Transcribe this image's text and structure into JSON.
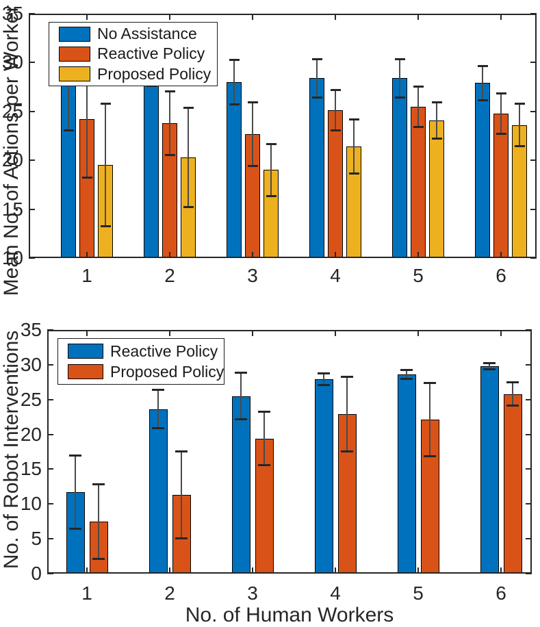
{
  "figure": {
    "background": "#ffffff",
    "axis_color": "#262626",
    "text_color": "#262626",
    "bar_edge_color": "#000000",
    "error_bar_color": "#4a4a4a"
  },
  "chart_data": [
    {
      "type": "bar",
      "title": "",
      "ylabel": "Mean No. of Actions per Worker",
      "xlabel": "",
      "categories": [
        "1",
        "2",
        "3",
        "4",
        "5",
        "6"
      ],
      "ylim": [
        10,
        35
      ],
      "yticks": [
        10,
        15,
        20,
        25,
        30,
        35
      ],
      "grid": false,
      "legend_position": "top-left",
      "series": [
        {
          "name": "No Assistance",
          "color": "#0072BD",
          "values": [
            28.0,
            29.4,
            28.0,
            28.4,
            28.4,
            27.9
          ],
          "errors": [
            5.0,
            1.8,
            2.3,
            2.0,
            2.0,
            1.8
          ]
        },
        {
          "name": "Reactive Policy",
          "color": "#D95319",
          "values": [
            24.2,
            23.8,
            22.7,
            25.1,
            25.5,
            24.8
          ],
          "errors": [
            6.0,
            3.3,
            3.3,
            2.1,
            2.1,
            2.1
          ]
        },
        {
          "name": "Proposed Policy",
          "color": "#EDB120",
          "values": [
            19.5,
            20.3,
            19.0,
            21.4,
            24.1,
            23.6
          ],
          "errors": [
            6.3,
            5.1,
            2.7,
            2.8,
            1.9,
            2.2
          ]
        }
      ]
    },
    {
      "type": "bar",
      "title": "",
      "ylabel": "No. of Robot Interventions",
      "xlabel": "No. of Human Workers",
      "categories": [
        "1",
        "2",
        "3",
        "4",
        "5",
        "6"
      ],
      "ylim": [
        0,
        35
      ],
      "yticks": [
        0,
        5,
        10,
        15,
        20,
        25,
        30,
        35
      ],
      "grid": false,
      "legend_position": "top-left",
      "series": [
        {
          "name": "Reactive Policy",
          "color": "#0072BD",
          "values": [
            11.7,
            23.6,
            25.5,
            27.9,
            28.6,
            29.8
          ],
          "errors": [
            5.3,
            2.8,
            3.4,
            0.9,
            0.7,
            0.5
          ]
        },
        {
          "name": "Proposed Policy",
          "color": "#D95319",
          "values": [
            7.5,
            11.3,
            19.4,
            22.9,
            22.1,
            25.8
          ],
          "errors": [
            5.4,
            6.3,
            3.9,
            5.4,
            5.3,
            1.7
          ]
        }
      ]
    }
  ]
}
